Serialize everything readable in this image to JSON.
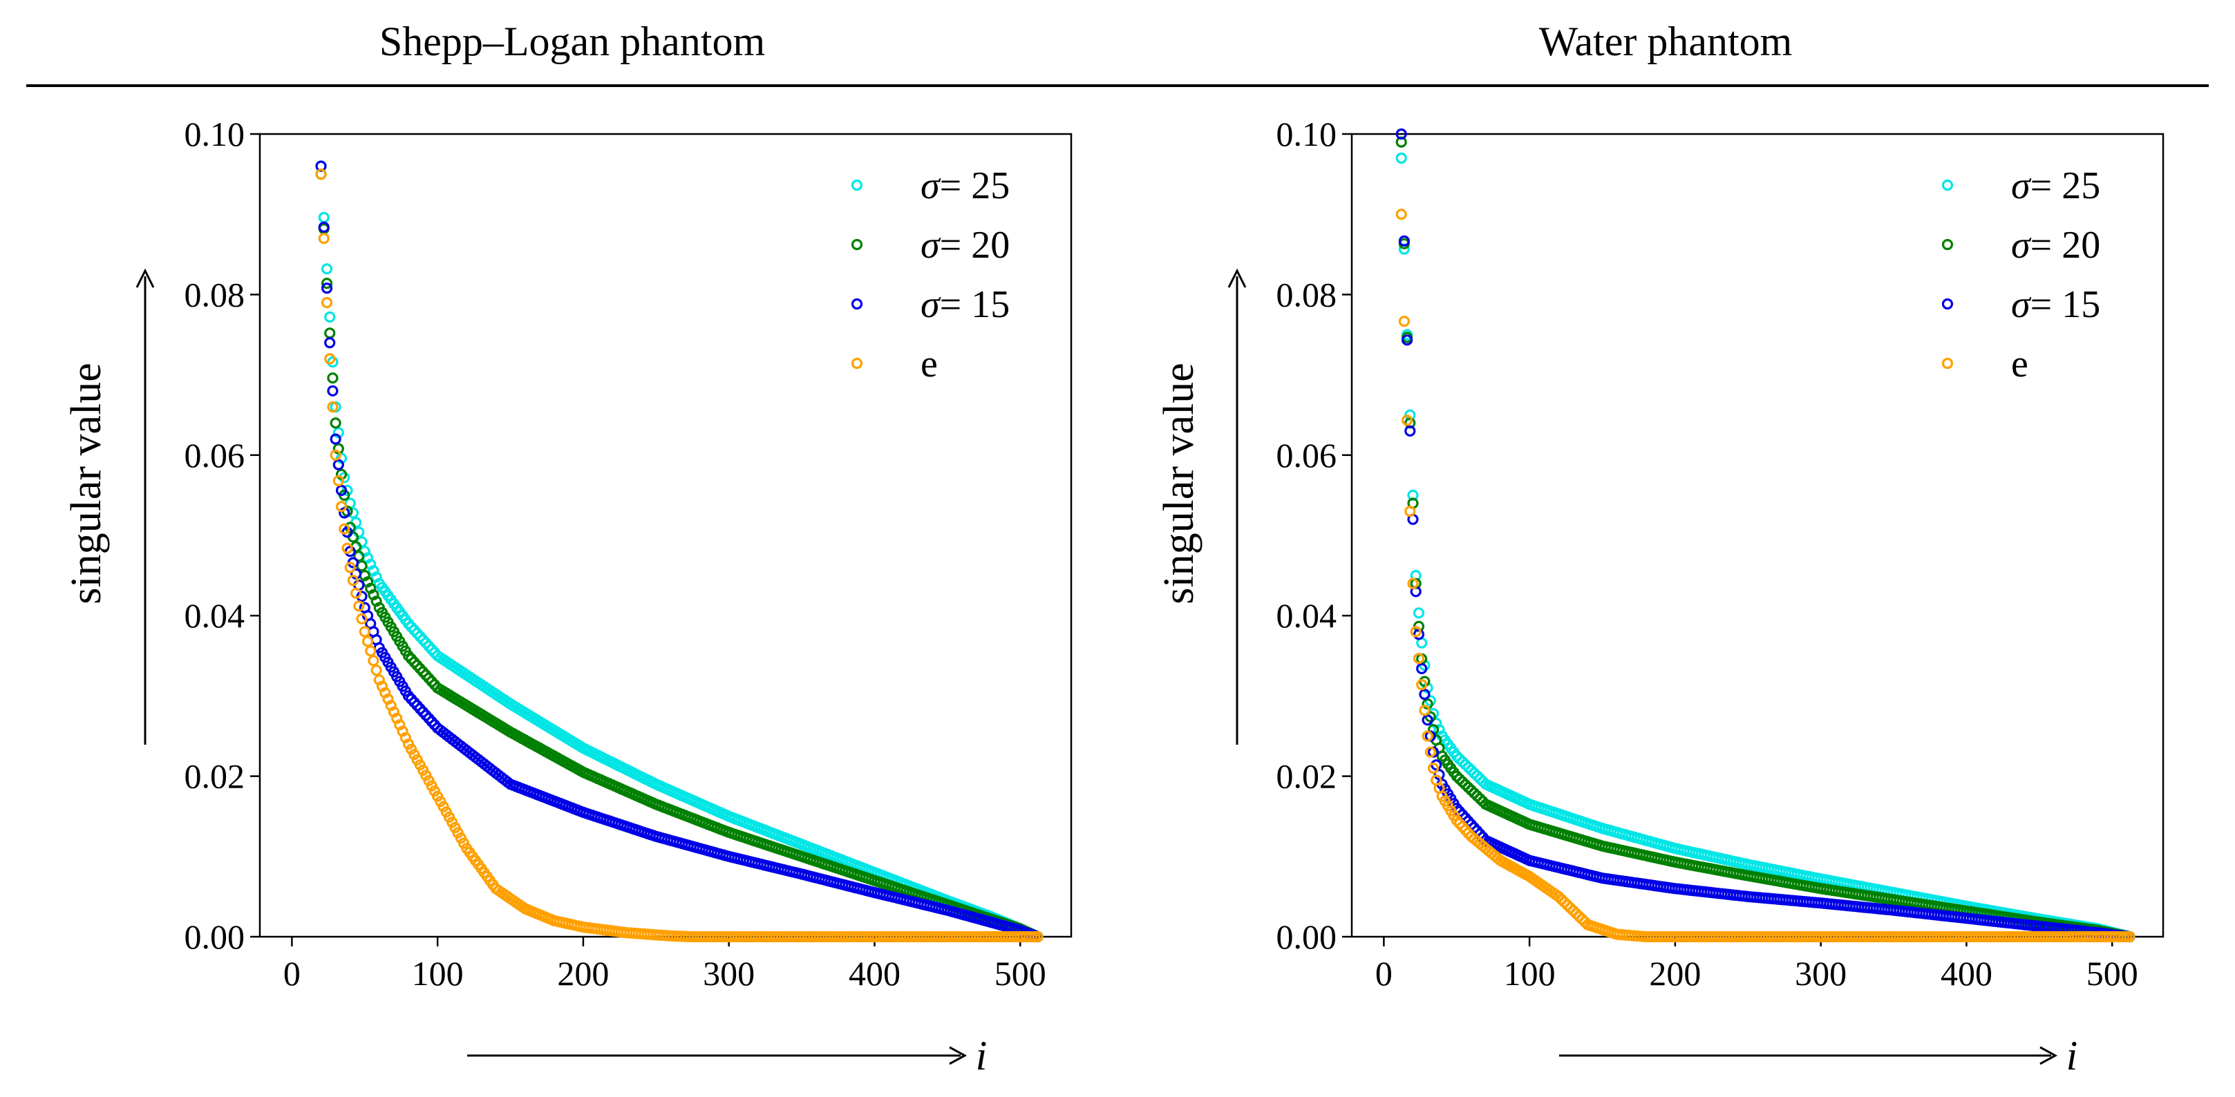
{
  "figure": {
    "column_titles": [
      "Shepp–Logan phantom",
      "Water phantom"
    ]
  },
  "chart_data": [
    {
      "type": "scatter",
      "title": "Shepp–Logan phantom",
      "xlabel": "i",
      "ylabel": "singular value",
      "xlim": [
        -22,
        535
      ],
      "ylim": [
        0,
        0.1
      ],
      "x_ticks": [
        0,
        100,
        200,
        300,
        400,
        500
      ],
      "y_ticks": [
        0.0,
        0.02,
        0.04,
        0.06,
        0.08,
        0.1
      ],
      "x_tick_labels": [
        "0",
        "100",
        "200",
        "300",
        "400",
        "500"
      ],
      "y_tick_labels": [
        "0.00",
        "0.02",
        "0.04",
        "0.06",
        "0.08",
        "0.10"
      ],
      "grid": false,
      "legend_position": "top-right",
      "series": [
        {
          "name": "σ = 25",
          "label_symbol": "σ",
          "label_value": "= 25",
          "color": "#00e5e5",
          "points": [
            [
              20,
              0.096
            ],
            [
              25,
              0.08
            ],
            [
              30,
              0.066
            ],
            [
              35,
              0.058
            ],
            [
              40,
              0.054
            ],
            [
              50,
              0.048
            ],
            [
              60,
              0.044
            ],
            [
              80,
              0.039
            ],
            [
              100,
              0.035
            ],
            [
              150,
              0.029
            ],
            [
              200,
              0.0235
            ],
            [
              250,
              0.019
            ],
            [
              300,
              0.015
            ],
            [
              350,
              0.0115
            ],
            [
              400,
              0.008
            ],
            [
              450,
              0.0045
            ],
            [
              480,
              0.0025
            ],
            [
              500,
              0.001
            ],
            [
              512,
              0.0
            ]
          ]
        },
        {
          "name": "σ = 20",
          "label_symbol": "σ",
          "label_value": "= 20",
          "color": "#008000",
          "points": [
            [
              20,
              0.095
            ],
            [
              25,
              0.078
            ],
            [
              30,
              0.064
            ],
            [
              35,
              0.056
            ],
            [
              40,
              0.051
            ],
            [
              50,
              0.045
            ],
            [
              60,
              0.041
            ],
            [
              80,
              0.035
            ],
            [
              100,
              0.031
            ],
            [
              150,
              0.0255
            ],
            [
              200,
              0.0205
            ],
            [
              250,
              0.0165
            ],
            [
              300,
              0.013
            ],
            [
              350,
              0.01
            ],
            [
              400,
              0.007
            ],
            [
              450,
              0.004
            ],
            [
              480,
              0.0022
            ],
            [
              500,
              0.001
            ],
            [
              512,
              0.0
            ]
          ]
        },
        {
          "name": "σ = 15",
          "label_symbol": "σ",
          "label_value": "= 15",
          "color": "#0000e6",
          "points": [
            [
              20,
              0.096
            ],
            [
              25,
              0.077
            ],
            [
              30,
              0.062
            ],
            [
              35,
              0.054
            ],
            [
              40,
              0.048
            ],
            [
              50,
              0.041
            ],
            [
              60,
              0.036
            ],
            [
              80,
              0.03
            ],
            [
              100,
              0.026
            ],
            [
              150,
              0.019
            ],
            [
              200,
              0.0155
            ],
            [
              250,
              0.0125
            ],
            [
              300,
              0.01
            ],
            [
              350,
              0.0078
            ],
            [
              400,
              0.0055
            ],
            [
              450,
              0.0033
            ],
            [
              480,
              0.0018
            ],
            [
              500,
              0.0008
            ],
            [
              512,
              0.0
            ]
          ]
        },
        {
          "name": "e",
          "label_symbol": "",
          "label_value": "e",
          "color": "#ffa000",
          "points": [
            [
              20,
              0.095
            ],
            [
              25,
              0.075
            ],
            [
              30,
              0.06
            ],
            [
              35,
              0.052
            ],
            [
              40,
              0.046
            ],
            [
              50,
              0.038
            ],
            [
              60,
              0.032
            ],
            [
              70,
              0.028
            ],
            [
              80,
              0.024
            ],
            [
              100,
              0.0175
            ],
            [
              120,
              0.011
            ],
            [
              140,
              0.006
            ],
            [
              160,
              0.0035
            ],
            [
              180,
              0.002
            ],
            [
              200,
              0.0012
            ],
            [
              230,
              0.0005
            ],
            [
              260,
              0.0001
            ],
            [
              275,
              0.0
            ],
            [
              300,
              0.0
            ],
            [
              400,
              0.0
            ],
            [
              512,
              0.0
            ]
          ]
        }
      ]
    },
    {
      "type": "scatter",
      "title": "Water phantom",
      "xlabel": "i",
      "ylabel": "singular value",
      "xlim": [
        -22,
        535
      ],
      "ylim": [
        0,
        0.1
      ],
      "x_ticks": [
        0,
        100,
        200,
        300,
        400,
        500
      ],
      "y_ticks": [
        0.0,
        0.02,
        0.04,
        0.06,
        0.08,
        0.1
      ],
      "x_tick_labels": [
        "0",
        "100",
        "200",
        "300",
        "400",
        "500"
      ],
      "y_tick_labels": [
        "0.00",
        "0.02",
        "0.04",
        "0.06",
        "0.08",
        "0.10"
      ],
      "grid": false,
      "legend_position": "top-right",
      "series": [
        {
          "name": "σ = 25",
          "label_symbol": "σ",
          "label_value": "= 25",
          "color": "#00e5e5",
          "points": [
            [
              12,
              0.097
            ],
            [
              15,
              0.08
            ],
            [
              18,
              0.065
            ],
            [
              20,
              0.055
            ],
            [
              22,
              0.045
            ],
            [
              25,
              0.038
            ],
            [
              30,
              0.031
            ],
            [
              35,
              0.027
            ],
            [
              40,
              0.025
            ],
            [
              50,
              0.0225
            ],
            [
              70,
              0.019
            ],
            [
              100,
              0.0165
            ],
            [
              150,
              0.0135
            ],
            [
              200,
              0.011
            ],
            [
              250,
              0.009
            ],
            [
              300,
              0.0072
            ],
            [
              350,
              0.0055
            ],
            [
              400,
              0.0038
            ],
            [
              450,
              0.0022
            ],
            [
              490,
              0.001
            ],
            [
              512,
              0.0
            ]
          ]
        },
        {
          "name": "σ = 20",
          "label_symbol": "σ",
          "label_value": "= 20",
          "color": "#008000",
          "points": [
            [
              12,
              0.099
            ],
            [
              15,
              0.08
            ],
            [
              18,
              0.064
            ],
            [
              20,
              0.054
            ],
            [
              22,
              0.044
            ],
            [
              25,
              0.036
            ],
            [
              30,
              0.029
            ],
            [
              35,
              0.025
            ],
            [
              40,
              0.0225
            ],
            [
              50,
              0.02
            ],
            [
              70,
              0.0165
            ],
            [
              100,
              0.014
            ],
            [
              150,
              0.0113
            ],
            [
              200,
              0.0093
            ],
            [
              250,
              0.0076
            ],
            [
              300,
              0.006
            ],
            [
              350,
              0.0046
            ],
            [
              400,
              0.0032
            ],
            [
              450,
              0.0018
            ],
            [
              490,
              0.0008
            ],
            [
              512,
              0.0
            ]
          ]
        },
        {
          "name": "σ = 15",
          "label_symbol": "σ",
          "label_value": "= 15",
          "color": "#0000e6",
          "points": [
            [
              12,
              0.1
            ],
            [
              15,
              0.08
            ],
            [
              18,
              0.063
            ],
            [
              20,
              0.052
            ],
            [
              22,
              0.043
            ],
            [
              25,
              0.035
            ],
            [
              30,
              0.027
            ],
            [
              35,
              0.022
            ],
            [
              40,
              0.019
            ],
            [
              50,
              0.016
            ],
            [
              70,
              0.012
            ],
            [
              100,
              0.0095
            ],
            [
              150,
              0.0073
            ],
            [
              200,
              0.006
            ],
            [
              250,
              0.005
            ],
            [
              300,
              0.0042
            ],
            [
              350,
              0.0033
            ],
            [
              400,
              0.0023
            ],
            [
              450,
              0.0013
            ],
            [
              490,
              0.0005
            ],
            [
              512,
              0.0
            ]
          ]
        },
        {
          "name": "e",
          "label_symbol": "",
          "label_value": "e",
          "color": "#ffa000",
          "points": [
            [
              12,
              0.09
            ],
            [
              15,
              0.07
            ],
            [
              18,
              0.053
            ],
            [
              20,
              0.044
            ],
            [
              22,
              0.038
            ],
            [
              25,
              0.033
            ],
            [
              30,
              0.025
            ],
            [
              35,
              0.02
            ],
            [
              40,
              0.0175
            ],
            [
              50,
              0.0145
            ],
            [
              60,
              0.0125
            ],
            [
              70,
              0.011
            ],
            [
              80,
              0.0095
            ],
            [
              100,
              0.0075
            ],
            [
              120,
              0.005
            ],
            [
              140,
              0.0015
            ],
            [
              160,
              0.0003
            ],
            [
              180,
              0.0
            ],
            [
              200,
              0.0
            ],
            [
              300,
              0.0
            ],
            [
              400,
              0.0
            ],
            [
              512,
              0.0
            ]
          ]
        }
      ]
    }
  ]
}
